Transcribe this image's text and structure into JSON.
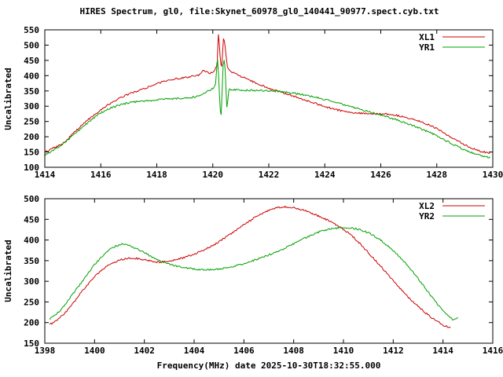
{
  "chart_data": [
    {
      "type": "line",
      "title": "HIRES Spectrum, gl0, file:Skynet_60978_gl0_140441_90977.spect.cyb.txt",
      "ylabel": "Uncalibrated",
      "xlabel": "",
      "xlim": [
        1414,
        1430
      ],
      "ylim": [
        100,
        550
      ],
      "x_ticks": [
        1414,
        1416,
        1418,
        1420,
        1422,
        1424,
        1426,
        1428,
        1430
      ],
      "y_ticks": [
        100,
        150,
        200,
        250,
        300,
        350,
        400,
        450,
        500,
        550
      ],
      "grid": false,
      "legend_position": "top-right",
      "series": [
        {
          "name": "XL1",
          "color": "#cc0000",
          "points": [
            [
              1414.0,
              150
            ],
            [
              1414.3,
              163
            ],
            [
              1414.7,
              182
            ],
            [
              1415.0,
              210
            ],
            [
              1415.5,
              252
            ],
            [
              1416.0,
              288
            ],
            [
              1416.5,
              318
            ],
            [
              1417.0,
              340
            ],
            [
              1417.5,
              356
            ],
            [
              1418.0,
              374
            ],
            [
              1418.5,
              386
            ],
            [
              1419.0,
              394
            ],
            [
              1419.3,
              399
            ],
            [
              1419.55,
              404
            ],
            [
              1419.65,
              420
            ],
            [
              1419.75,
              413
            ],
            [
              1419.9,
              408
            ],
            [
              1420.0,
              413
            ],
            [
              1420.1,
              424
            ],
            [
              1420.16,
              450
            ],
            [
              1420.2,
              535
            ],
            [
              1420.26,
              465
            ],
            [
              1420.32,
              428
            ],
            [
              1420.38,
              520
            ],
            [
              1420.44,
              495
            ],
            [
              1420.52,
              432
            ],
            [
              1420.65,
              415
            ],
            [
              1420.85,
              404
            ],
            [
              1421.2,
              390
            ],
            [
              1421.6,
              374
            ],
            [
              1422.0,
              359
            ],
            [
              1422.5,
              344
            ],
            [
              1423.0,
              329
            ],
            [
              1423.5,
              314
            ],
            [
              1424.0,
              299
            ],
            [
              1424.5,
              287
            ],
            [
              1425.0,
              279
            ],
            [
              1425.5,
              276
            ],
            [
              1426.0,
              275
            ],
            [
              1426.5,
              271
            ],
            [
              1427.0,
              261
            ],
            [
              1427.5,
              247
            ],
            [
              1428.0,
              227
            ],
            [
              1428.5,
              199
            ],
            [
              1429.0,
              174
            ],
            [
              1429.5,
              154
            ],
            [
              1429.9,
              147
            ]
          ]
        },
        {
          "name": "YR1",
          "color": "#00a000",
          "points": [
            [
              1414.0,
              139
            ],
            [
              1414.5,
              168
            ],
            [
              1415.0,
              203
            ],
            [
              1415.5,
              243
            ],
            [
              1416.0,
              278
            ],
            [
              1416.5,
              299
            ],
            [
              1417.0,
              311
            ],
            [
              1417.5,
              317
            ],
            [
              1418.0,
              321
            ],
            [
              1418.5,
              324
            ],
            [
              1419.0,
              327
            ],
            [
              1419.4,
              331
            ],
            [
              1419.6,
              338
            ],
            [
              1419.8,
              348
            ],
            [
              1420.0,
              358
            ],
            [
              1420.1,
              375
            ],
            [
              1420.17,
              452
            ],
            [
              1420.24,
              335
            ],
            [
              1420.3,
              272
            ],
            [
              1420.37,
              438
            ],
            [
              1420.44,
              425
            ],
            [
              1420.5,
              298
            ],
            [
              1420.57,
              352
            ],
            [
              1420.7,
              354
            ],
            [
              1421.0,
              352
            ],
            [
              1421.5,
              352
            ],
            [
              1422.0,
              350
            ],
            [
              1422.5,
              347
            ],
            [
              1423.0,
              341
            ],
            [
              1423.5,
              333
            ],
            [
              1424.0,
              322
            ],
            [
              1424.5,
              310
            ],
            [
              1425.0,
              297
            ],
            [
              1425.5,
              284
            ],
            [
              1426.0,
              271
            ],
            [
              1426.5,
              257
            ],
            [
              1427.0,
              241
            ],
            [
              1427.5,
              224
            ],
            [
              1428.0,
              203
            ],
            [
              1428.5,
              179
            ],
            [
              1429.0,
              157
            ],
            [
              1429.5,
              140
            ],
            [
              1429.9,
              132
            ]
          ]
        }
      ]
    },
    {
      "type": "line",
      "title": "",
      "ylabel": "Uncalibrated",
      "xlabel": "Frequency(MHz) date 2025-10-30T18:32:55.000",
      "xlim": [
        1398,
        1416
      ],
      "ylim": [
        150,
        500
      ],
      "x_ticks": [
        1398,
        1400,
        1402,
        1404,
        1406,
        1408,
        1410,
        1412,
        1414,
        1416
      ],
      "y_ticks": [
        150,
        200,
        250,
        300,
        350,
        400,
        450,
        500
      ],
      "grid": false,
      "legend_position": "top-right",
      "series": [
        {
          "name": "XL2",
          "color": "#cc0000",
          "points": [
            [
              1398.2,
              196
            ],
            [
              1398.5,
              206
            ],
            [
              1399.0,
              236
            ],
            [
              1399.5,
              276
            ],
            [
              1400.0,
              311
            ],
            [
              1400.5,
              336
            ],
            [
              1401.0,
              351
            ],
            [
              1401.5,
              356
            ],
            [
              1402.0,
              352
            ],
            [
              1402.5,
              347
            ],
            [
              1403.0,
              349
            ],
            [
              1403.5,
              356
            ],
            [
              1404.0,
              366
            ],
            [
              1404.5,
              379
            ],
            [
              1405.0,
              396
            ],
            [
              1405.5,
              416
            ],
            [
              1406.0,
              437
            ],
            [
              1406.5,
              456
            ],
            [
              1407.0,
              471
            ],
            [
              1407.4,
              479
            ],
            [
              1407.8,
              480
            ],
            [
              1408.2,
              475
            ],
            [
              1408.6,
              468
            ],
            [
              1409.0,
              458
            ],
            [
              1409.5,
              444
            ],
            [
              1410.0,
              426
            ],
            [
              1410.5,
              401
            ],
            [
              1411.0,
              369
            ],
            [
              1411.5,
              336
            ],
            [
              1412.0,
              301
            ],
            [
              1412.5,
              268
            ],
            [
              1413.0,
              239
            ],
            [
              1413.5,
              214
            ],
            [
              1414.0,
              194
            ],
            [
              1414.3,
              189
            ]
          ]
        },
        {
          "name": "YR2",
          "color": "#00a000",
          "points": [
            [
              1398.2,
              209
            ],
            [
              1398.6,
              228
            ],
            [
              1399.0,
              259
            ],
            [
              1399.5,
              299
            ],
            [
              1400.0,
              340
            ],
            [
              1400.5,
              371
            ],
            [
              1400.9,
              386
            ],
            [
              1401.2,
              390
            ],
            [
              1401.5,
              384
            ],
            [
              1402.0,
              369
            ],
            [
              1402.5,
              353
            ],
            [
              1403.0,
              342
            ],
            [
              1403.5,
              334
            ],
            [
              1404.0,
              330
            ],
            [
              1404.5,
              328
            ],
            [
              1405.0,
              330
            ],
            [
              1405.5,
              335
            ],
            [
              1406.0,
              343
            ],
            [
              1406.5,
              353
            ],
            [
              1407.0,
              364
            ],
            [
              1407.5,
              376
            ],
            [
              1408.0,
              391
            ],
            [
              1408.5,
              406
            ],
            [
              1409.0,
              419
            ],
            [
              1409.5,
              427
            ],
            [
              1410.0,
              430
            ],
            [
              1410.5,
              427
            ],
            [
              1411.0,
              417
            ],
            [
              1411.5,
              399
            ],
            [
              1412.0,
              374
            ],
            [
              1412.5,
              343
            ],
            [
              1413.0,
              306
            ],
            [
              1413.5,
              266
            ],
            [
              1414.0,
              229
            ],
            [
              1414.4,
              208
            ],
            [
              1414.6,
              212
            ]
          ]
        }
      ]
    }
  ]
}
